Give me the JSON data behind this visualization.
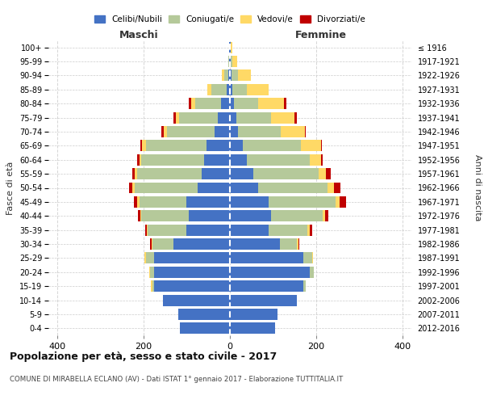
{
  "age_groups": [
    "0-4",
    "5-9",
    "10-14",
    "15-19",
    "20-24",
    "25-29",
    "30-34",
    "35-39",
    "40-44",
    "45-49",
    "50-54",
    "55-59",
    "60-64",
    "65-69",
    "70-74",
    "75-79",
    "80-84",
    "85-89",
    "90-94",
    "95-99",
    "100+"
  ],
  "birth_years": [
    "2012-2016",
    "2007-2011",
    "2002-2006",
    "1997-2001",
    "1992-1996",
    "1987-1991",
    "1982-1986",
    "1977-1981",
    "1972-1976",
    "1967-1971",
    "1962-1966",
    "1957-1961",
    "1952-1956",
    "1947-1951",
    "1942-1946",
    "1937-1941",
    "1932-1936",
    "1927-1931",
    "1922-1926",
    "1917-1921",
    "≤ 1916"
  ],
  "male": {
    "celibi": [
      115,
      120,
      155,
      175,
      175,
      175,
      130,
      100,
      95,
      100,
      75,
      65,
      60,
      55,
      35,
      28,
      20,
      8,
      4,
      2,
      2
    ],
    "coniugati": [
      0,
      0,
      0,
      5,
      10,
      20,
      50,
      90,
      110,
      110,
      145,
      150,
      145,
      140,
      110,
      90,
      60,
      35,
      10,
      2,
      0
    ],
    "vedovi": [
      0,
      0,
      0,
      2,
      2,
      2,
      2,
      3,
      3,
      5,
      5,
      5,
      5,
      8,
      8,
      8,
      10,
      10,
      5,
      0,
      0
    ],
    "divorziati": [
      0,
      0,
      0,
      0,
      0,
      0,
      2,
      3,
      5,
      8,
      8,
      5,
      5,
      5,
      5,
      5,
      5,
      0,
      0,
      0,
      0
    ]
  },
  "female": {
    "nubili": [
      105,
      110,
      155,
      170,
      185,
      170,
      115,
      90,
      95,
      90,
      65,
      55,
      40,
      30,
      18,
      15,
      10,
      5,
      3,
      2,
      2
    ],
    "coniugate": [
      0,
      0,
      0,
      5,
      10,
      20,
      40,
      90,
      120,
      155,
      160,
      150,
      145,
      135,
      100,
      80,
      55,
      35,
      15,
      3,
      0
    ],
    "vedove": [
      0,
      0,
      0,
      0,
      0,
      2,
      3,
      5,
      5,
      8,
      15,
      18,
      25,
      45,
      55,
      55,
      60,
      50,
      30,
      12,
      3
    ],
    "divorziate": [
      0,
      0,
      0,
      0,
      0,
      0,
      3,
      5,
      8,
      15,
      15,
      10,
      5,
      3,
      3,
      5,
      5,
      0,
      0,
      0,
      0
    ]
  },
  "colors": {
    "celibi_nubili": "#4472c4",
    "coniugati": "#b5c99a",
    "vedovi": "#ffd966",
    "divorziati": "#c00000"
  },
  "xlim": 420,
  "title": "Popolazione per età, sesso e stato civile - 2017",
  "subtitle": "COMUNE DI MIRABELLA ECLANO (AV) - Dati ISTAT 1° gennaio 2017 - Elaborazione TUTTITALIA.IT",
  "ylabel_left": "Fasce di età",
  "ylabel_right": "Anni di nascita",
  "xlabel_male": "Maschi",
  "xlabel_female": "Femmine",
  "legend_labels": [
    "Celibi/Nubili",
    "Coniugati/e",
    "Vedovi/e",
    "Divorziati/e"
  ],
  "grid_color": "#cccccc"
}
